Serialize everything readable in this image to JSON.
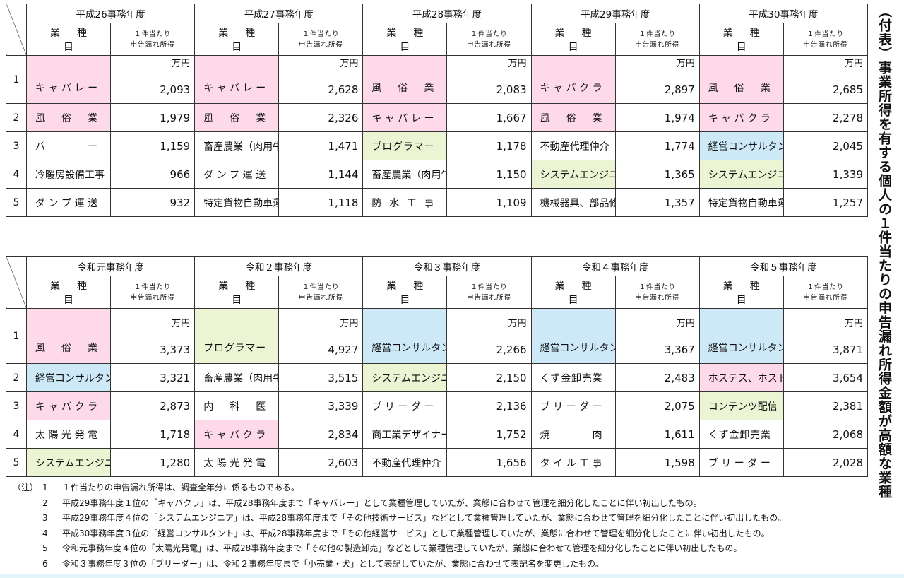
{
  "title": "（付表）事業所得を有する個人の１件当たりの申告漏れ所得金額が高額な業種",
  "headers": {
    "industry": "業種目",
    "value_line1": "１件当たり",
    "value_line2": "申告漏れ所得",
    "unit": "万円"
  },
  "colors": {
    "pink": "#fdd9ea",
    "green": "#ebf5d4",
    "blue": "#cde9f8"
  },
  "ranks": [
    "1",
    "2",
    "3",
    "4",
    "5"
  ],
  "tables": [
    {
      "years": [
        {
          "label": "平成26事務年度",
          "rows": [
            {
              "name": "キャバレー",
              "value": "2,093",
              "color": "pink"
            },
            {
              "name": "風俗業",
              "value": "1,979",
              "color": "pink"
            },
            {
              "name": "バー",
              "value": "1,159"
            },
            {
              "name": "冷暖房設備工事",
              "value": "966"
            },
            {
              "name": "ダンプ運送",
              "value": "932"
            }
          ]
        },
        {
          "label": "平成27事務年度",
          "rows": [
            {
              "name": "キャバレー",
              "value": "2,628",
              "color": "pink"
            },
            {
              "name": "風俗業",
              "value": "2,326",
              "color": "pink"
            },
            {
              "name": "畜産農業（肉用牛）",
              "value": "1,471"
            },
            {
              "name": "ダンプ運送",
              "value": "1,144"
            },
            {
              "name": "特定貨物自動車運送",
              "value": "1,118"
            }
          ]
        },
        {
          "label": "平成28事務年度",
          "rows": [
            {
              "name": "風俗業",
              "value": "2,083",
              "color": "pink"
            },
            {
              "name": "キャバレー",
              "value": "1,667",
              "color": "pink"
            },
            {
              "name": "プログラマー",
              "value": "1,178",
              "color": "green"
            },
            {
              "name": "畜産農業（肉用牛）",
              "value": "1,150"
            },
            {
              "name": "防水工事",
              "value": "1,109"
            }
          ]
        },
        {
          "label": "平成29事務年度",
          "rows": [
            {
              "name": "キャバクラ",
              "value": "2,897",
              "color": "pink"
            },
            {
              "name": "風俗業",
              "value": "1,974",
              "color": "pink"
            },
            {
              "name": "不動産代理仲介",
              "value": "1,774"
            },
            {
              "name": "システムエンジニア",
              "value": "1,365",
              "color": "green"
            },
            {
              "name": "機械器具、部品修理",
              "value": "1,357"
            }
          ]
        },
        {
          "label": "平成30事務年度",
          "rows": [
            {
              "name": "風俗業",
              "value": "2,685",
              "color": "pink"
            },
            {
              "name": "キャバクラ",
              "value": "2,278",
              "color": "pink"
            },
            {
              "name": "経営コンサルタント",
              "value": "2,045",
              "color": "blue"
            },
            {
              "name": "システムエンジニア",
              "value": "1,339",
              "color": "green"
            },
            {
              "name": "特定貨物自動車運送",
              "value": "1,257"
            }
          ]
        }
      ]
    },
    {
      "years": [
        {
          "label": "令和元事務年度",
          "rows": [
            {
              "name": "風俗業",
              "value": "3,373",
              "color": "pink"
            },
            {
              "name": "経営コンサルタント",
              "value": "3,321",
              "color": "blue"
            },
            {
              "name": "キャバクラ",
              "value": "2,873",
              "color": "pink"
            },
            {
              "name": "太陽光発電",
              "value": "1,718"
            },
            {
              "name": "システムエンジニア",
              "value": "1,280",
              "color": "green"
            }
          ]
        },
        {
          "label": "令和２事務年度",
          "rows": [
            {
              "name": "プログラマー",
              "value": "4,927",
              "color": "green"
            },
            {
              "name": "畜産農業（肉用牛）",
              "value": "3,515"
            },
            {
              "name": "内科医",
              "value": "3,339"
            },
            {
              "name": "キャバクラ",
              "value": "2,834",
              "color": "pink"
            },
            {
              "name": "太陽光発電",
              "value": "2,603"
            }
          ]
        },
        {
          "label": "令和３事務年度",
          "rows": [
            {
              "name": "経営コンサルタント",
              "value": "2,266",
              "color": "blue"
            },
            {
              "name": "システムエンジニア",
              "value": "2,150",
              "color": "green"
            },
            {
              "name": "ブリーダー",
              "value": "2,136"
            },
            {
              "name": "商工業デザイナー",
              "value": "1,752"
            },
            {
              "name": "不動産代理仲介",
              "value": "1,656"
            }
          ]
        },
        {
          "label": "令和４事務年度",
          "rows": [
            {
              "name": "経営コンサルタント",
              "value": "3,367",
              "color": "blue"
            },
            {
              "name": "くず金卸売業",
              "value": "2,483"
            },
            {
              "name": "ブリーダー",
              "value": "2,075"
            },
            {
              "name": "焼肉",
              "value": "1,611"
            },
            {
              "name": "タイル工事",
              "value": "1,598"
            }
          ]
        },
        {
          "label": "令和５事務年度",
          "rows": [
            {
              "name": "経営コンサルタント",
              "value": "3,871",
              "color": "blue"
            },
            {
              "name": "ホステス、ホスト",
              "value": "3,654",
              "color": "pink"
            },
            {
              "name": "コンテンツ配信",
              "value": "2,381",
              "color": "green"
            },
            {
              "name": "くず金卸売業",
              "value": "2,068"
            },
            {
              "name": "ブリーダー",
              "value": "2,028"
            }
          ]
        }
      ]
    }
  ],
  "notes": {
    "label": "（注）",
    "items": [
      {
        "num": "1",
        "text": "１件当たりの申告漏れ所得は、調査全年分に係るものである。"
      },
      {
        "num": "2",
        "text": "平成29事務年度１位の「キャバクラ」は、平成28事務年度まで「キャバレー」として業種管理していたが、業態に合わせて管理を細分化したことに伴い初出したもの。"
      },
      {
        "num": "3",
        "text": "平成29事務年度４位の「システムエンジニア」は、平成28事務年度まで「その他技術サービス」などとして業種管理していたが、業態に合わせて管理を細分化したことに伴い初出したもの。"
      },
      {
        "num": "4",
        "text": "平成30事務年度３位の「経営コンサルタント」は、平成28事務年度まで「その他経営サービス」として業種管理していたが、業態に合わせて管理を細分化したことに伴い初出したもの。"
      },
      {
        "num": "5",
        "text": "令和元事務年度４位の「太陽光発電」は、平成28事務年度まで「その他の製造卸売」などとして業種管理していたが、業態に合わせて管理を細分化したことに伴い初出したもの。"
      },
      {
        "num": "6",
        "text": "令和３事務年度３位の「ブリーダー」は、令和２事務年度まで「小売業・犬」として表記していたが、業態に合わせて表記名を変更したもの。"
      }
    ]
  }
}
